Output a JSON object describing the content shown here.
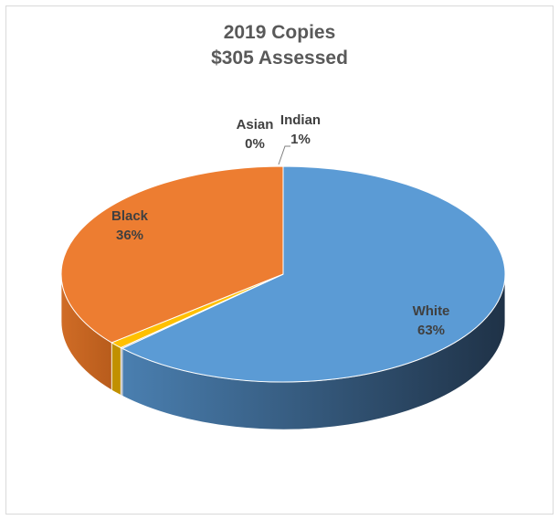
{
  "chart_data": {
    "type": "pie",
    "title": "2019 Copies",
    "subtitle": "$305 Assessed",
    "slices": [
      {
        "name": "White",
        "value": 63,
        "label": "63%",
        "color": "#5b9bd5",
        "side_color": "#2e4e6e"
      },
      {
        "name": "Asian",
        "value": 0,
        "label": "0%",
        "color": "#a5a5a5",
        "side_color": "#6f6f6f"
      },
      {
        "name": "Indian",
        "value": 1,
        "label": "1%",
        "color": "#ffc000",
        "side_color": "#c19000"
      },
      {
        "name": "Black",
        "value": 36,
        "label": "36%",
        "color": "#ed7d31",
        "side_color": "#c0621f"
      }
    ],
    "start": "top (12 o'clock), clockwise",
    "style": "3D pie"
  }
}
